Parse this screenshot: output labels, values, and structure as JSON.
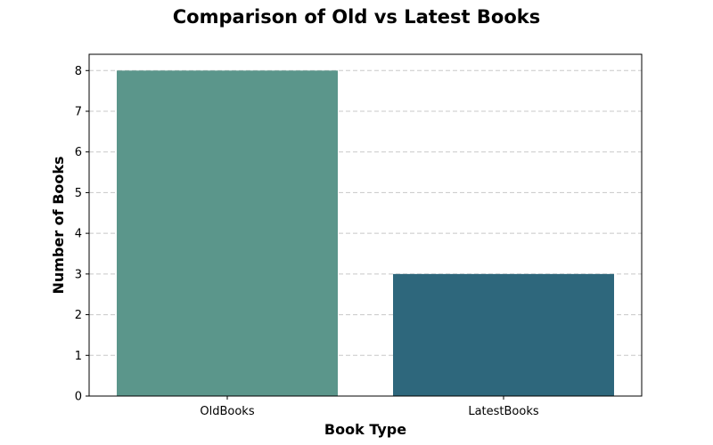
{
  "chart_data": {
    "type": "bar",
    "title": "Comparison of Old vs Latest Books",
    "xlabel": "Book Type",
    "ylabel": "Number of Books",
    "categories": [
      "OldBooks",
      "LatestBooks"
    ],
    "values": [
      8,
      3
    ],
    "colors": [
      "#5b968b",
      "#2e677c"
    ],
    "ylim": [
      0,
      8.4
    ],
    "yticks": [
      0,
      1,
      2,
      3,
      4,
      5,
      6,
      7,
      8
    ],
    "grid": "y, dashed",
    "legend": "none"
  }
}
